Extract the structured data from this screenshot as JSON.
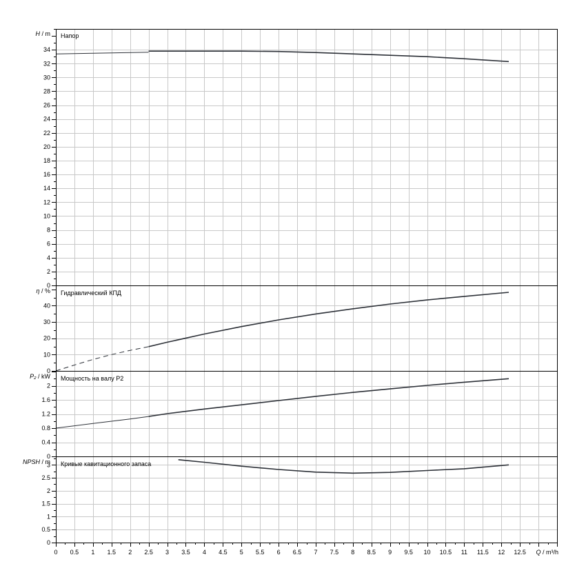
{
  "chart_data": {
    "type": "line",
    "x_axis": {
      "label_var": "Q",
      "label_unit": "/ m³/h",
      "range": [
        0,
        13.5
      ],
      "ticks": [
        0,
        0.5,
        1,
        1.5,
        2,
        2.5,
        3,
        3.5,
        4,
        4.5,
        5,
        5.5,
        6,
        6.5,
        7,
        7.5,
        8,
        8.5,
        9,
        9.5,
        10,
        10.5,
        11,
        11.5,
        12,
        12.5
      ],
      "grid_step": 0.5
    },
    "panels": [
      {
        "title": "Напор",
        "y_label_var": "H",
        "y_label_unit": "/ m",
        "ylim": [
          0,
          37
        ],
        "y_ticks": [
          0,
          2,
          4,
          6,
          8,
          10,
          12,
          14,
          16,
          18,
          20,
          22,
          24,
          26,
          28,
          30,
          32,
          34
        ],
        "series": [
          {
            "style": "thin",
            "x": [
              0,
              1,
              2,
              2.5
            ],
            "y": [
              33.4,
              33.5,
              33.6,
              33.65
            ]
          },
          {
            "style": "solid",
            "x": [
              2.5,
              3,
              4,
              5,
              6,
              7,
              8,
              9,
              10,
              11,
              12.2
            ],
            "y": [
              33.8,
              33.8,
              33.8,
              33.8,
              33.75,
              33.6,
              33.4,
              33.2,
              33.0,
              32.7,
              32.3
            ]
          }
        ]
      },
      {
        "title": "Гидравлический КПД",
        "y_label_var": "η",
        "y_label_unit": "/ %",
        "ylim": [
          0,
          52
        ],
        "y_ticks": [
          0,
          10,
          20,
          30,
          40
        ],
        "series": [
          {
            "style": "dashed",
            "x": [
              0,
              0.5,
              1,
              1.5,
              2,
              2.5
            ],
            "y": [
              0,
              3.6,
              7.0,
              10.0,
              12.6,
              14.9
            ]
          },
          {
            "style": "solid",
            "x": [
              2.5,
              3,
              4,
              5,
              6,
              7,
              8,
              9,
              10,
              11,
              12.2
            ],
            "y": [
              14.9,
              17.6,
              22.6,
              27.2,
              31.3,
              34.9,
              38.1,
              41.0,
              43.5,
              45.7,
              48.2
            ]
          }
        ]
      },
      {
        "title": "Мощность на валу P2",
        "y_label_var": "P₂",
        "y_label_unit": "/ kW",
        "ylim": [
          0,
          2.4
        ],
        "y_ticks": [
          0,
          0.4,
          0.8,
          1.2,
          1.6,
          2
        ],
        "series": [
          {
            "style": "thin",
            "x": [
              0,
              1,
              2,
              2.5
            ],
            "y": [
              0.8,
              0.93,
              1.06,
              1.13
            ]
          },
          {
            "style": "solid",
            "x": [
              2.5,
              3,
              4,
              5,
              6,
              7,
              8,
              9,
              10,
              11,
              12.2
            ],
            "y": [
              1.13,
              1.21,
              1.34,
              1.46,
              1.58,
              1.7,
              1.81,
              1.91,
              2.01,
              2.1,
              2.2
            ]
          }
        ]
      },
      {
        "title": "Кривые кавитационного запаса",
        "y_label_var": "NPSH",
        "y_label_unit": "/ m",
        "ylim": [
          0,
          3.3
        ],
        "y_ticks": [
          0,
          0.5,
          1,
          1.5,
          2,
          2.5,
          3
        ],
        "series": [
          {
            "style": "solid",
            "x": [
              3.3,
              4,
              5,
              6,
              7,
              8,
              9,
              10,
              11,
              12.2
            ],
            "y": [
              3.2,
              3.1,
              2.95,
              2.82,
              2.72,
              2.68,
              2.71,
              2.78,
              2.85,
              3.0
            ]
          }
        ]
      }
    ]
  }
}
